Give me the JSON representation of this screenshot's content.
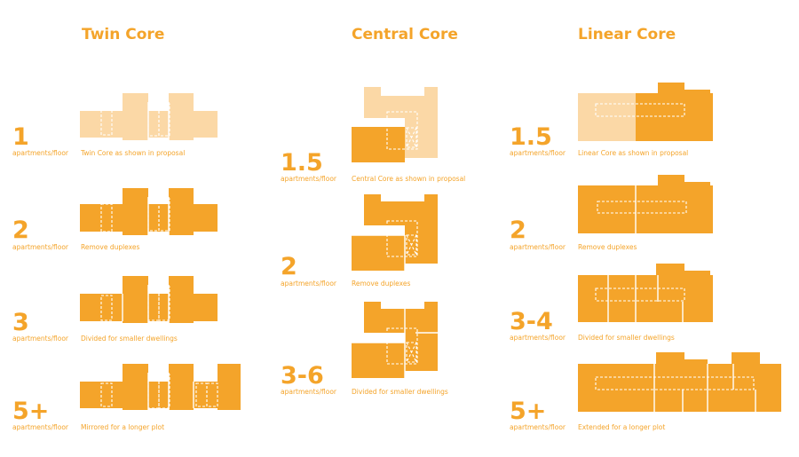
{
  "columns": [
    {
      "title": "Twin Core",
      "rows": [
        {
          "count": "1",
          "unit": "apartments/floor",
          "caption": "Twin Core as shown in proposal"
        },
        {
          "count": "2",
          "unit": "apartments/floor",
          "caption": "Remove duplexes"
        },
        {
          "count": "3",
          "unit": "apartments/floor",
          "caption": "Divided for smaller dwellings"
        },
        {
          "count": "5+",
          "unit": "apartments/floor",
          "caption": "Mirrored for a longer plot"
        }
      ]
    },
    {
      "title": "Central Core",
      "rows": [
        {
          "count": "1.5",
          "unit": "apartments/floor",
          "caption": "Central Core as shown in proposal"
        },
        {
          "count": "2",
          "unit": "apartments/floor",
          "caption": "Remove duplexes"
        },
        {
          "count": "3-6",
          "unit": "apartments/floor",
          "caption": "Divided for smaller dwellings"
        }
      ]
    },
    {
      "title": "Linear Core",
      "rows": [
        {
          "count": "1.5",
          "unit": "apartments/floor",
          "caption": "Linear Core as shown in proposal"
        },
        {
          "count": "2",
          "unit": "apartments/floor",
          "caption": "Remove duplexes"
        },
        {
          "count": "3-4",
          "unit": "apartments/floor",
          "caption": "Divided for smaller dwellings"
        },
        {
          "count": "5+",
          "unit": "apartments/floor",
          "caption": "Extended for a longer plot"
        }
      ]
    }
  ],
  "colors": {
    "accent": "#f4a42a",
    "accent_light": "#fbd8a6",
    "background": "#ffffff"
  }
}
